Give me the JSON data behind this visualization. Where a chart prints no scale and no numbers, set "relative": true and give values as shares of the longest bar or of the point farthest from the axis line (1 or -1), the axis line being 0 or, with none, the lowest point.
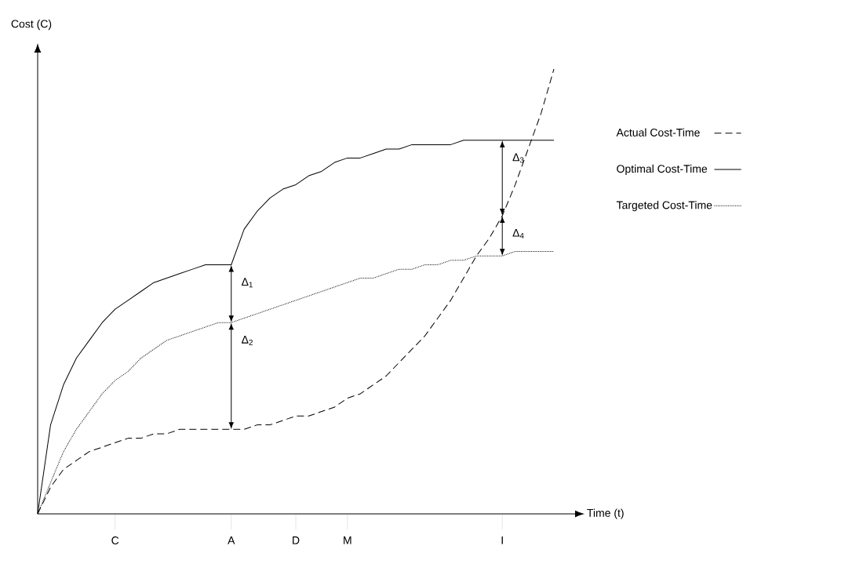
{
  "chart_data": {
    "type": "line",
    "relative": true,
    "xlabel": "Time (t)",
    "ylabel": "Cost (C)",
    "categories": [
      null,
      null,
      null,
      null,
      null,
      null,
      "C",
      null,
      null,
      null,
      null,
      null,
      null,
      null,
      null,
      "A",
      null,
      null,
      null,
      null,
      "D",
      null,
      null,
      null,
      "M",
      null,
      null,
      null,
      null,
      null,
      null,
      null,
      null,
      null,
      null,
      null,
      "I",
      null,
      null,
      null,
      null
    ],
    "series": [
      {
        "name": "Actual Cost-Time",
        "color": "#000000",
        "line_style": "dashed",
        "values": [
          0,
          0.06,
          0.1,
          0.12,
          0.14,
          0.15,
          0.16,
          0.17,
          0.17,
          0.18,
          0.18,
          0.19,
          0.19,
          0.19,
          0.19,
          0.19,
          0.19,
          0.2,
          0.2,
          0.21,
          0.22,
          0.22,
          0.23,
          0.24,
          0.26,
          0.27,
          0.29,
          0.31,
          0.34,
          0.37,
          0.4,
          0.44,
          0.48,
          0.53,
          0.58,
          0.62,
          0.67,
          0.74,
          0.82,
          0.9,
          1.0
        ]
      },
      {
        "name": "Optimal Cost-Time",
        "color": "#000000",
        "line_style": "solid",
        "values": [
          0,
          0.2,
          0.29,
          0.35,
          0.39,
          0.43,
          0.46,
          0.48,
          0.5,
          0.52,
          0.53,
          0.54,
          0.55,
          0.56,
          0.56,
          0.56,
          0.64,
          0.68,
          0.71,
          0.73,
          0.74,
          0.76,
          0.77,
          0.79,
          0.8,
          0.8,
          0.81,
          0.82,
          0.82,
          0.83,
          0.83,
          0.83,
          0.83,
          0.84,
          0.84,
          0.84,
          0.84,
          0.84,
          0.84,
          0.84,
          0.84
        ]
      },
      {
        "name": "Targeted Cost-Time",
        "color": "#000000",
        "line_style": "dotted",
        "values": [
          0,
          0.07,
          0.14,
          0.19,
          0.23,
          0.27,
          0.3,
          0.32,
          0.35,
          0.37,
          0.39,
          0.4,
          0.41,
          0.42,
          0.43,
          0.43,
          0.44,
          0.45,
          0.46,
          0.47,
          0.48,
          0.49,
          0.5,
          0.51,
          0.52,
          0.53,
          0.53,
          0.54,
          0.55,
          0.55,
          0.56,
          0.56,
          0.57,
          0.57,
          0.58,
          0.58,
          0.58,
          0.59,
          0.59,
          0.59,
          0.59
        ]
      }
    ],
    "annotations": [
      {
        "text": "Δ$_{1}$",
        "x": "A",
        "y": 0.56
      },
      {
        "text": "Δ$_{2}$",
        "x": "A",
        "y": 0.43
      },
      {
        "text": "Δ$_{3}$",
        "x": "I",
        "y": 0.84
      },
      {
        "text": "Δ$_{4}$",
        "x": "I",
        "y": 0.67
      }
    ],
    "marker": "none",
    "legend": "right",
    "grid": false
  }
}
